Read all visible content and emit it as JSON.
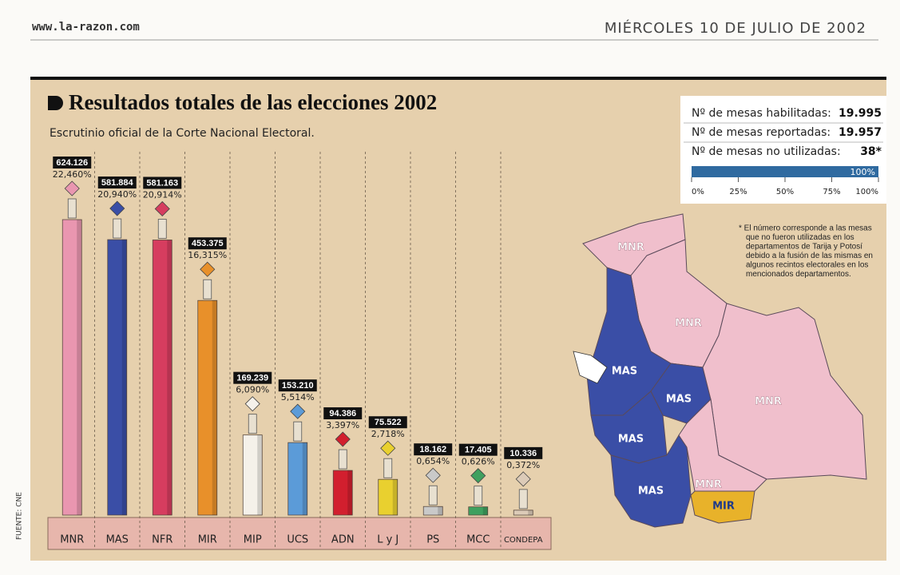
{
  "header": {
    "site": "www.la-razon.com",
    "date": "MIÉRCOLES 10 DE JULIO DE 2002"
  },
  "chart_data": {
    "type": "bar",
    "title": "Resultados totales de las elecciones 2002",
    "subtitle": "Escrutinio oficial de la Corte Nacional Electoral.",
    "categories": [
      "MNR",
      "MAS",
      "NFR",
      "MIR",
      "MIP",
      "UCS",
      "ADN",
      "L y J",
      "PS",
      "MCC",
      "CONDEPA"
    ],
    "values": [
      624126,
      581884,
      581163,
      453375,
      169239,
      153210,
      94386,
      75522,
      18162,
      17405,
      10336
    ],
    "value_labels": [
      "624.126",
      "581.884",
      "581.163",
      "453.375",
      "169.239",
      "153.210",
      "94.386",
      "75.522",
      "18.162",
      "17.405",
      "10.336"
    ],
    "shares": [
      22.46,
      20.94,
      20.914,
      16.315,
      6.09,
      5.514,
      3.397,
      2.718,
      0.654,
      0.626,
      0.372
    ],
    "share_labels": [
      "22,460%",
      "20,940%",
      "20,914%",
      "16,315%",
      "6,090%",
      "5,514%",
      "3,397%",
      "2,718%",
      "0,654%",
      "0,626%",
      "0,372%"
    ],
    "colors": [
      "#e996b0",
      "#3a4ea6",
      "#d63d5f",
      "#e8902a",
      "#f5f1ea",
      "#5b9bd8",
      "#d21f2e",
      "#e9d02f",
      "#c9c9c9",
      "#3fa05f",
      "#dccbb8"
    ]
  },
  "panel": {
    "rows": [
      {
        "label": "Nº de mesas habilitadas:",
        "value": "19.995"
      },
      {
        "label": "Nº de mesas reportadas:",
        "value": "19.957"
      },
      {
        "label": "Nº de mesas no utilizadas:",
        "value": "38*"
      }
    ],
    "progress": {
      "value": 100,
      "label": "100%",
      "color": "#2f6aa0",
      "xlim": [
        0,
        100
      ],
      "xticks": [
        {
          "value": 0,
          "label": "0%"
        },
        {
          "value": 25,
          "label": "25%"
        },
        {
          "value": 50,
          "label": "50%"
        },
        {
          "value": 75,
          "label": "75%"
        },
        {
          "value": 100,
          "label": "100%"
        }
      ]
    }
  },
  "footnote": [
    "* El número corresponde a las mesas",
    "que no fueron utilizadas en los",
    "departamentos de Tarija y Potosí",
    "debido a la fusión de las mismas en",
    "algunos recintos electorales en los",
    "mencionados departamentos."
  ],
  "map": {
    "regions": [
      {
        "label": "MNR"
      },
      {
        "label": "MNR"
      },
      {
        "label": "MAS"
      },
      {
        "label": "MAS"
      },
      {
        "label": "MNR"
      },
      {
        "label": "MAS"
      },
      {
        "label": "MAS"
      },
      {
        "label": "MNR"
      },
      {
        "label": "MIR"
      }
    ]
  },
  "source": "FUENTE: CNE"
}
